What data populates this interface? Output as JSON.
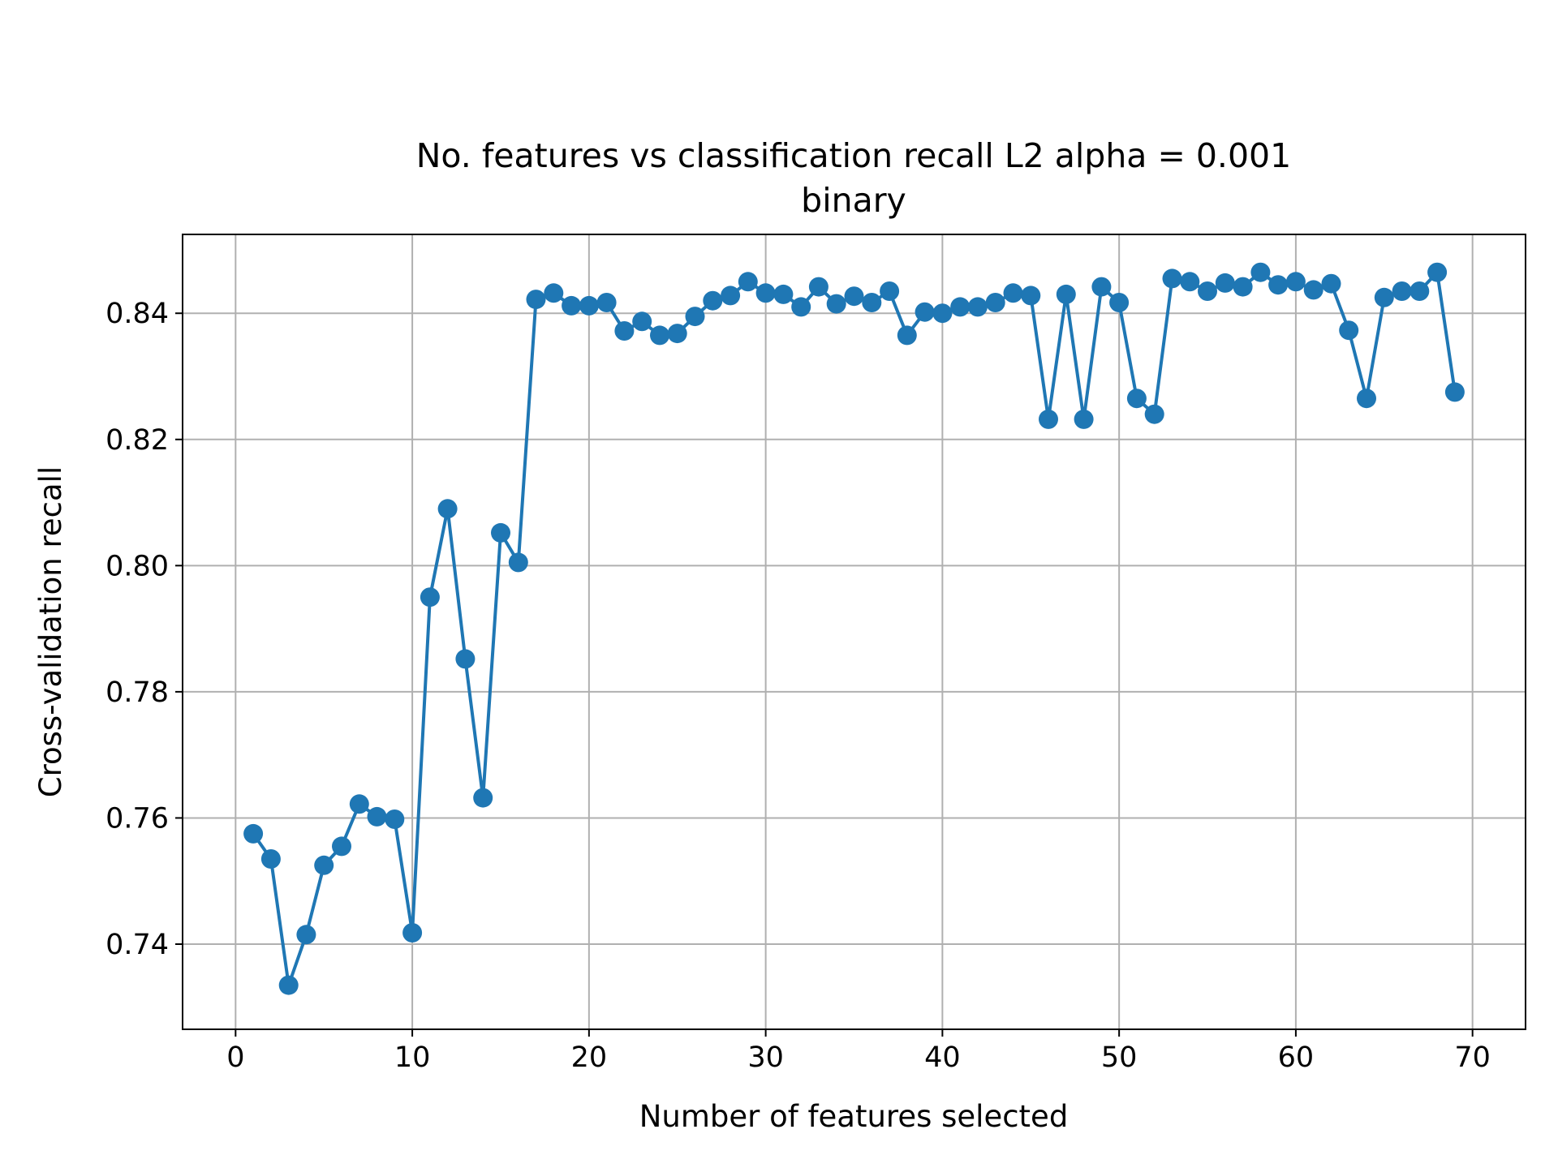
{
  "chart_data": {
    "type": "line",
    "title": "No. features vs classification recall L2 alpha = 0.001",
    "subtitle": "binary",
    "xlabel": "Number of features selected",
    "ylabel": "Cross-validation recall",
    "xlim": [
      -3,
      73
    ],
    "ylim": [
      0.7265,
      0.8525
    ],
    "xticks": [
      0,
      10,
      20,
      30,
      40,
      50,
      60,
      70
    ],
    "xtick_labels": [
      "0",
      "10",
      "20",
      "30",
      "40",
      "50",
      "60",
      "70"
    ],
    "yticks": [
      0.74,
      0.76,
      0.78,
      0.8,
      0.82,
      0.84
    ],
    "ytick_labels": [
      "0.74",
      "0.76",
      "0.78",
      "0.80",
      "0.82",
      "0.84"
    ],
    "grid": true,
    "legend": "none",
    "series": [
      {
        "color": "#1f77b4",
        "marker": "circle",
        "x": [
          1,
          2,
          3,
          4,
          5,
          6,
          7,
          8,
          9,
          10,
          11,
          12,
          13,
          14,
          15,
          16,
          17,
          18,
          19,
          20,
          21,
          22,
          23,
          24,
          25,
          26,
          27,
          28,
          29,
          30,
          31,
          32,
          33,
          34,
          35,
          36,
          37,
          38,
          39,
          40,
          41,
          42,
          43,
          44,
          45,
          46,
          47,
          48,
          49,
          50,
          51,
          52,
          53,
          54,
          55,
          56,
          57,
          58,
          59,
          60,
          61,
          62,
          63,
          64,
          65,
          66,
          67,
          68,
          69
        ],
        "y": [
          0.7575,
          0.7535,
          0.7335,
          0.7415,
          0.7525,
          0.7555,
          0.7622,
          0.7602,
          0.7598,
          0.7418,
          0.795,
          0.809,
          0.7852,
          0.7632,
          0.8052,
          0.8005,
          0.8422,
          0.8432,
          0.8412,
          0.8412,
          0.8417,
          0.8372,
          0.8387,
          0.8365,
          0.8368,
          0.8395,
          0.842,
          0.8428,
          0.845,
          0.8432,
          0.843,
          0.841,
          0.8442,
          0.8415,
          0.8427,
          0.8417,
          0.8435,
          0.8365,
          0.8402,
          0.84,
          0.841,
          0.841,
          0.8417,
          0.8432,
          0.8428,
          0.8232,
          0.843,
          0.8232,
          0.8442,
          0.8417,
          0.8265,
          0.824,
          0.8455,
          0.845,
          0.8435,
          0.8448,
          0.8442,
          0.8465,
          0.8445,
          0.845,
          0.8437,
          0.8447,
          0.8373,
          0.8265,
          0.8425,
          0.8435,
          0.8435,
          0.8465,
          0.8275
        ]
      }
    ]
  }
}
